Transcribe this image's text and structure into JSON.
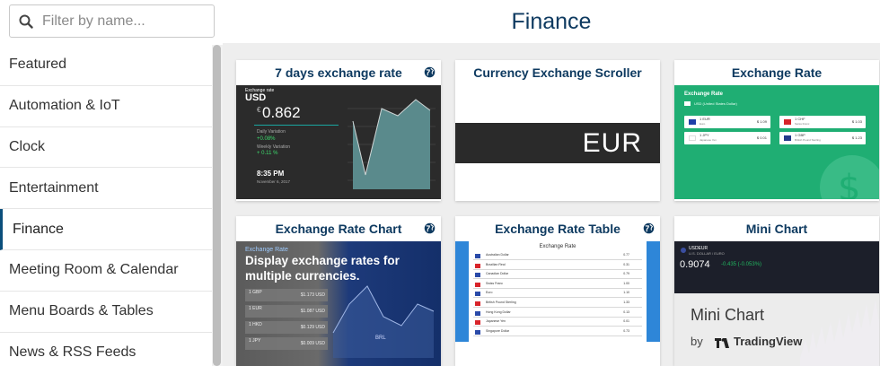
{
  "search": {
    "placeholder": "Filter by name..."
  },
  "page": {
    "title": "Finance"
  },
  "sidebar": {
    "items": [
      {
        "label": "Featured"
      },
      {
        "label": "Automation & IoT"
      },
      {
        "label": "Clock"
      },
      {
        "label": "Entertainment"
      },
      {
        "label": "Finance"
      },
      {
        "label": "Meeting Room & Calendar"
      },
      {
        "label": "Menu Boards & Tables"
      },
      {
        "label": "News & RSS Feeds"
      }
    ],
    "active": "Finance"
  },
  "cards": [
    {
      "title": "7 days exchange rate",
      "thumb": {
        "heading": "Exchange rate",
        "currency": "USD",
        "symbol": "€",
        "value": "0.862",
        "daily_label": "Daily Variation",
        "daily_value": "+0.08%",
        "weekly_label": "Weekly Variation",
        "weekly_value": "+ 0.11 %",
        "time": "8:35 PM",
        "date": "November 6, 2017"
      }
    },
    {
      "title": "Currency Exchange Scroller",
      "thumb": {
        "band_text": "EUR"
      }
    },
    {
      "title": "Exchange Rate",
      "thumb": {
        "heading": "Exchange Rate",
        "sub": "USD (United States Dollar)",
        "rows": [
          {
            "code": "1 EUR",
            "name": "Euro",
            "value": "$ 1.09"
          },
          {
            "code": "1 CHF",
            "name": "Swiss Franc",
            "value": "$ 1.03"
          },
          {
            "code": "1 JPY",
            "name": "Japanese Yen",
            "value": "$ 0.01"
          },
          {
            "code": "1 GBP",
            "name": "British Pound Sterling",
            "value": "$ 1.23"
          }
        ]
      }
    },
    {
      "title": "Exchange Rate Chart",
      "thumb": {
        "overlay_text": "Display exchange rates for multiple currencies.",
        "heading": "Exchange Rate",
        "rows": [
          {
            "code": "1 GBP",
            "value": "$1.173 USD"
          },
          {
            "code": "1 EUR",
            "value": "$1.087 USD"
          },
          {
            "code": "1 HKD",
            "value": "$0.129 USD"
          },
          {
            "code": "1 JPY",
            "value": "$0.009 USD"
          }
        ],
        "corner": "BRL"
      }
    },
    {
      "title": "Exchange Rate Table",
      "thumb": {
        "heading": "Exchange Rate",
        "rows": [
          {
            "name": "Australian Dollar",
            "value": "0.77"
          },
          {
            "name": "Brazilian Real",
            "value": "0.31"
          },
          {
            "name": "Canadian Dollar",
            "value": "0.79"
          },
          {
            "name": "Swiss Franc",
            "value": "1.00"
          },
          {
            "name": "Euro",
            "value": "1.10"
          },
          {
            "name": "British Pound Sterling",
            "value": "1.33"
          },
          {
            "name": "Hong Kong Dollar",
            "value": "0.13"
          },
          {
            "name": "Japanese Yen",
            "value": "0.01"
          },
          {
            "name": "Singapore Dollar",
            "value": "0.73"
          }
        ]
      }
    },
    {
      "title": "Mini Chart",
      "thumb": {
        "pair": "USDEUR",
        "pair_sub": "U.S. DOLLAR / EURO",
        "value": "0.9074",
        "change": "-0.435 (-0.053%)",
        "brand_title": "Mini Chart",
        "by": "by",
        "brand": "TradingView"
      }
    }
  ],
  "colors": {
    "title_blue": "#0e3a60",
    "content_bg": "#eeeeee",
    "green": "#1fae73",
    "table_blue": "#2e86d8",
    "positive": "#3ddc6e"
  },
  "icons": {
    "search": "search-icon",
    "card_corner": "globe-icon"
  }
}
